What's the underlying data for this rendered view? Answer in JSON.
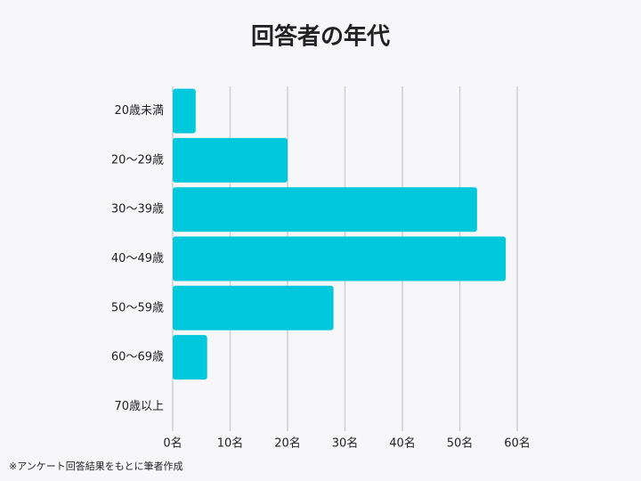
{
  "chart_data": {
    "type": "barh",
    "title": "回答者の年代",
    "categories": [
      "20歳未満",
      "20～29歳",
      "30～39歳",
      "40～49歳",
      "50～59歳",
      "60～69歳",
      "70歳以上"
    ],
    "values": [
      4,
      20,
      53,
      58,
      28,
      6,
      0
    ],
    "color": "#00c8dc",
    "xlim": [
      0,
      60
    ],
    "xticks": [
      {
        "value": 0,
        "label": "0名"
      },
      {
        "value": 10,
        "label": "10名"
      },
      {
        "value": 20,
        "label": "20名"
      },
      {
        "value": 30,
        "label": "30名"
      },
      {
        "value": 40,
        "label": "40名"
      },
      {
        "value": 50,
        "label": "50名"
      },
      {
        "value": 60,
        "label": "60名"
      }
    ],
    "grid": true,
    "note": "※アンケート回答結果をもとに筆者作成"
  }
}
